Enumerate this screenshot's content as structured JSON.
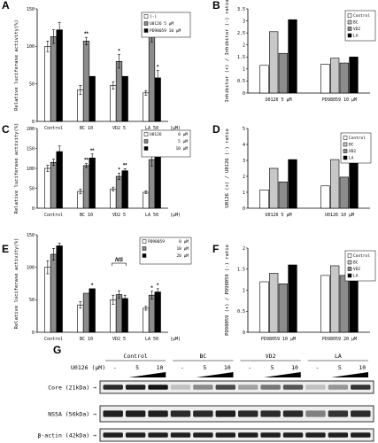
{
  "chart_data": [
    {
      "panel": "A",
      "type": "bar",
      "ylabel": "Relative luciferase activity(%)",
      "ylim": [
        0,
        150
      ],
      "yticks": [
        0,
        50,
        100,
        150
      ],
      "categories": [
        "Control",
        "BC 10",
        "VD2 5",
        "LA 50"
      ],
      "unit": "(μM)",
      "series": [
        {
          "name": "(-)",
          "color": "#ffffff",
          "values": [
            100,
            42,
            48,
            38
          ],
          "err": [
            7,
            6,
            5,
            3
          ]
        },
        {
          "name": "U0126 5 μM",
          "color": "#8c8c8c",
          "values": [
            113,
            107,
            80,
            122
          ],
          "err": [
            9,
            5,
            9,
            16
          ]
        },
        {
          "name": "PD98059 10 μM",
          "color": "#000000",
          "values": [
            122,
            60,
            60,
            58
          ],
          "err": [
            10,
            0,
            0,
            10
          ]
        }
      ],
      "sig": [
        [],
        [
          "**",
          ""
        ],
        [
          "*",
          ""
        ],
        [
          "**",
          "*"
        ]
      ]
    },
    {
      "panel": "B",
      "type": "bar",
      "ylabel": "Inhibitor (+) / Inhibitor (-) ratio",
      "ylim": [
        0,
        3.5
      ],
      "yticks": [
        0,
        0.5,
        1,
        1.5,
        2,
        2.5,
        3,
        3.5
      ],
      "groups": [
        "U0126 5 μM",
        "PD98059 10 μM"
      ],
      "legend": [
        "Control",
        "BC",
        "VD2",
        "LA"
      ],
      "colors": [
        "#ffffff",
        "#c8c8c8",
        "#8c8c8c",
        "#000000"
      ],
      "values": [
        [
          1.15,
          2.55,
          1.65,
          3.05
        ],
        [
          1.2,
          1.45,
          1.25,
          1.5
        ]
      ]
    },
    {
      "panel": "C",
      "type": "bar",
      "ylabel": "Relative luciferase activity(%)",
      "ylim": [
        0,
        200
      ],
      "yticks": [
        0,
        50,
        100,
        150,
        200
      ],
      "categories": [
        "Control",
        "BC 10",
        "VD2 5",
        "LA 50"
      ],
      "unit": "(μM)",
      "legend_title": "U0126",
      "series": [
        {
          "name": "0 μM",
          "color": "#ffffff",
          "values": [
            100,
            42,
            48,
            40
          ],
          "err": [
            8,
            6,
            5,
            3
          ]
        },
        {
          "name": "5 μM",
          "color": "#8c8c8c",
          "values": [
            115,
            107,
            80,
            122
          ],
          "err": [
            8,
            5,
            8,
            16
          ]
        },
        {
          "name": "10 μM",
          "color": "#000000",
          "values": [
            142,
            126,
            94,
            160
          ],
          "err": [
            14,
            10,
            5,
            0
          ]
        }
      ],
      "sig": [
        [],
        [
          "**",
          "**"
        ],
        [
          "*",
          "**"
        ],
        [
          "**",
          "***"
        ]
      ]
    },
    {
      "panel": "D",
      "type": "bar",
      "ylabel": "U0126 (+) / U0126 (-) ratio",
      "ylim": [
        0,
        5
      ],
      "yticks": [
        0,
        1,
        2,
        3,
        4,
        5
      ],
      "groups": [
        "U0126 5 μM",
        "U0126 10 μM"
      ],
      "legend": [
        "Control",
        "BC",
        "VD2",
        "LA"
      ],
      "colors": [
        "#ffffff",
        "#c8c8c8",
        "#8c8c8c",
        "#000000"
      ],
      "values": [
        [
          1.15,
          2.5,
          1.65,
          3.05
        ],
        [
          1.4,
          3.05,
          1.95,
          4.05
        ]
      ]
    },
    {
      "panel": "E",
      "type": "bar",
      "ylabel": "Relative luciferase activity(%)",
      "ylim": [
        0,
        150
      ],
      "yticks": [
        0,
        50,
        100,
        150
      ],
      "categories": [
        "Control",
        "BC 10",
        "VD2 5",
        "LA 50"
      ],
      "unit": "(μM)",
      "legend_title": "PD98059",
      "series": [
        {
          "name": "0 μM",
          "color": "#ffffff",
          "values": [
            100,
            42,
            50,
            37
          ],
          "err": [
            10,
            5,
            7,
            3
          ]
        },
        {
          "name": "10 μM",
          "color": "#8c8c8c",
          "values": [
            120,
            60,
            58,
            57
          ],
          "err": [
            9,
            0,
            6,
            6
          ]
        },
        {
          "name": "20 μM",
          "color": "#000000",
          "values": [
            133,
            67,
            52,
            62
          ],
          "err": [
            4,
            0,
            5,
            5
          ]
        }
      ],
      "sig": [
        [],
        [
          "",
          "*"
        ],
        [
          "",
          ""
        ],
        [
          "*",
          "*"
        ]
      ],
      "ns_label": "NS"
    },
    {
      "panel": "F",
      "type": "bar",
      "ylabel": "PD98059 (+) / PD98059 (-) ratio",
      "ylim": [
        0,
        2
      ],
      "yticks": [
        0,
        0.5,
        1,
        1.5,
        2
      ],
      "groups": [
        "PD98059 10 μM",
        "PD98059 20 μM"
      ],
      "legend": [
        "Control",
        "BC",
        "VD2",
        "LA"
      ],
      "colors": [
        "#ffffff",
        "#c8c8c8",
        "#8c8c8c",
        "#000000"
      ],
      "values": [
        [
          1.2,
          1.4,
          1.15,
          1.6
        ],
        [
          1.35,
          1.58,
          1.35,
          1.7
        ]
      ]
    }
  ],
  "blot": {
    "panel": "G",
    "groups": [
      "Control",
      "BC",
      "VD2",
      "LA"
    ],
    "treatment_label": "U0126 (μM)",
    "lane_labels": [
      "-",
      "5",
      "10"
    ],
    "rows": [
      {
        "label": "Core (21kDa)",
        "intensity": [
          0.9,
          0.95,
          1.0,
          0.2,
          0.45,
          0.75,
          0.35,
          0.55,
          0.7,
          0.2,
          0.4,
          0.85
        ]
      },
      {
        "label": "NS5A (56kDa)",
        "intensity": [
          0.95,
          0.95,
          0.95,
          0.9,
          0.9,
          0.95,
          0.9,
          0.9,
          0.9,
          0.5,
          0.85,
          0.9
        ]
      },
      {
        "label": "β-actin (42kDa)",
        "intensity": [
          0.95,
          0.95,
          0.95,
          0.95,
          0.95,
          0.95,
          0.95,
          0.95,
          0.95,
          0.95,
          0.95,
          0.95
        ]
      }
    ]
  }
}
